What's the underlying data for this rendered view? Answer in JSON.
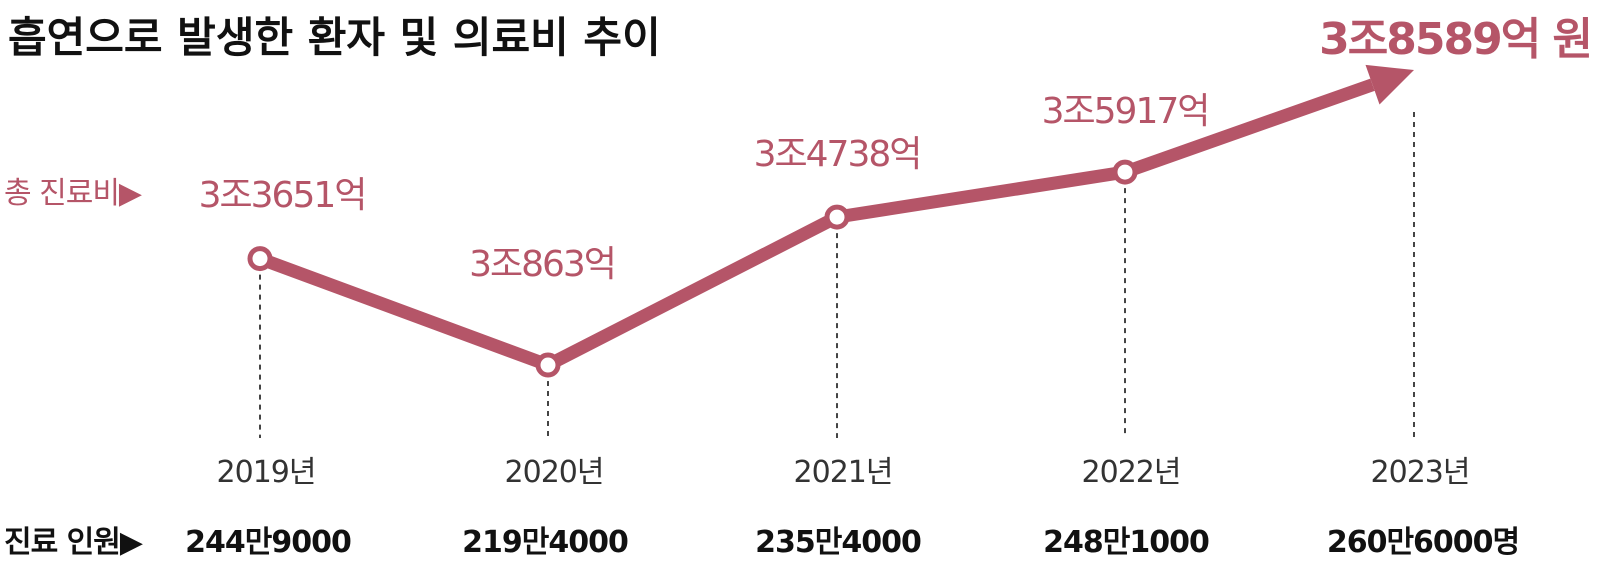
{
  "title": "흡연으로 발생한 환자 및 의료비 추이",
  "colors": {
    "accent": "#b55568",
    "text": "#111111"
  },
  "chart_data": {
    "type": "line",
    "x": [
      "2019년",
      "2020년",
      "2021년",
      "2022년",
      "2023년"
    ],
    "series": [
      {
        "name": "총 진료비",
        "values": [
          33651,
          30863,
          34738,
          35917,
          38589
        ],
        "labels": [
          "3조3651억",
          "3조863억",
          "3조4738억",
          "3조5917억",
          "3조8589억 원"
        ]
      }
    ],
    "series_prefix": "총 진료비▶",
    "patients": {
      "prefix": "진료 인원▶",
      "values": [
        2449000,
        2194000,
        2354000,
        2481000,
        2606000
      ],
      "labels": [
        "244만9000",
        "219만4000",
        "235만4000",
        "248만1000",
        "260만6000명"
      ]
    },
    "unit": "억 원",
    "last_point_arrow": true,
    "grid": false
  }
}
